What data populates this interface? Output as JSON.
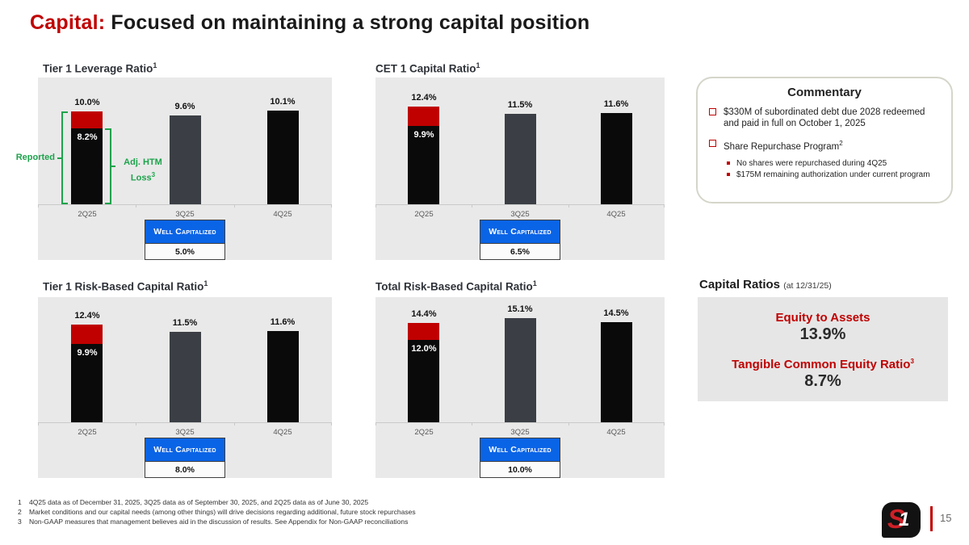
{
  "header": {
    "prefix": "Capital:",
    "rest": " Focused on maintaining a strong capital position"
  },
  "colors": {
    "accent_red": "#c00000",
    "bar_black": "#0a0a0a",
    "bar_charcoal": "#3b3f45",
    "annotation_green": "#1da34c",
    "well_capitalized_blue": "#0a64e6",
    "panel_gray": "#e9e9e9"
  },
  "chart_data": [
    {
      "type": "bar",
      "title": "Tier 1 Leverage Ratio",
      "title_sup": "1",
      "categories": [
        "2Q25",
        "3Q25",
        "4Q25"
      ],
      "ylim": [
        0,
        13.7
      ],
      "bars": [
        {
          "label": "10.0%",
          "total": 10.0,
          "black": 8.2,
          "red": 1.8,
          "inner_label": "8.2%"
        },
        {
          "label": "9.6%",
          "total": 9.6,
          "color": "charcoal"
        },
        {
          "label": "10.1%",
          "total": 10.1,
          "color": "black"
        }
      ],
      "well_capitalized": {
        "label": "Well Capitalized",
        "value": "5.0%"
      },
      "annotations": {
        "left_bracket_label": "Reported",
        "right_bracket_line1": "Adj. HTM",
        "right_bracket_line2": "Loss",
        "right_bracket_sup": "3"
      }
    },
    {
      "type": "bar",
      "title": "CET 1 Capital Ratio",
      "title_sup": "1",
      "categories": [
        "2Q25",
        "3Q25",
        "4Q25"
      ],
      "ylim": [
        0,
        16.1
      ],
      "bars": [
        {
          "label": "12.4%",
          "total": 12.4,
          "black": 9.9,
          "red": 2.5,
          "inner_label": "9.9%"
        },
        {
          "label": "11.5%",
          "total": 11.5,
          "color": "charcoal"
        },
        {
          "label": "11.6%",
          "total": 11.6,
          "color": "black"
        }
      ],
      "well_capitalized": {
        "label": "Well Capitalized",
        "value": "6.5%"
      }
    },
    {
      "type": "bar",
      "title": "Tier 1 Risk-Based Capital Ratio",
      "title_sup": "1",
      "categories": [
        "2Q25",
        "3Q25",
        "4Q25"
      ],
      "ylim": [
        0,
        15.9
      ],
      "bars": [
        {
          "label": "12.4%",
          "total": 12.4,
          "black": 9.9,
          "red": 2.5,
          "inner_label": "9.9%"
        },
        {
          "label": "11.5%",
          "total": 11.5,
          "color": "charcoal"
        },
        {
          "label": "11.6%",
          "total": 11.6,
          "color": "black"
        }
      ],
      "well_capitalized": {
        "label": "Well Capitalized",
        "value": "8.0%"
      }
    },
    {
      "type": "bar",
      "title": "Total Risk-Based Capital Ratio",
      "title_sup": "1",
      "categories": [
        "2Q25",
        "3Q25",
        "4Q25"
      ],
      "ylim": [
        0,
        18.1
      ],
      "bars": [
        {
          "label": "14.4%",
          "total": 14.4,
          "black": 12.0,
          "red": 2.4,
          "inner_label": "12.0%"
        },
        {
          "label": "15.1%",
          "total": 15.1,
          "color": "charcoal"
        },
        {
          "label": "14.5%",
          "total": 14.5,
          "color": "black"
        }
      ],
      "well_capitalized": {
        "label": "Well Capitalized",
        "value": "10.0%"
      }
    }
  ],
  "commentary": {
    "title": "Commentary",
    "bullets": [
      {
        "text": "$330M of subordinated debt due 2028 redeemed and paid in full on October 1, 2025",
        "sup": ""
      },
      {
        "text": "Share Repurchase Program",
        "sup": "2"
      }
    ],
    "sub_bullets": [
      {
        "text": "No shares were repurchased during 4Q25"
      },
      {
        "text": "$175M remaining authorization under current program"
      }
    ]
  },
  "capital_ratios": {
    "title": "Capital Ratios",
    "as_of": "(at 12/31/25)",
    "items": [
      {
        "name": "Equity to Assets",
        "sup": "",
        "value": "13.9%"
      },
      {
        "name": "Tangible Common Equity Ratio",
        "sup": "3",
        "value": "8.7%"
      }
    ]
  },
  "footnotes": [
    {
      "num": "1",
      "text": "4Q25 data as of December 31, 2025, 3Q25 data as of September 30, 2025, and 2Q25 data as of June 30, 2025"
    },
    {
      "num": "2",
      "text": "Market conditions and our capital needs (among other things) will drive decisions regarding additional, future stock repurchases"
    },
    {
      "num": "3",
      "text": "Non-GAAP measures that management believes aid in the discussion of results. See Appendix for Non-GAAP reconciliations"
    }
  ],
  "footer": {
    "page": "15",
    "logo_s": "S",
    "logo_one": "1"
  }
}
